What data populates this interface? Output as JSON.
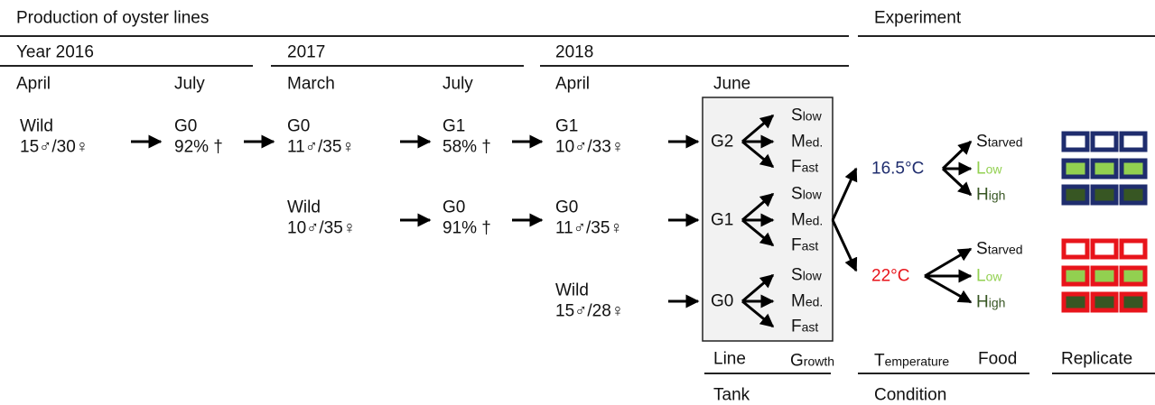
{
  "header": {
    "production": "Production of oyster lines",
    "experiment": "Experiment"
  },
  "years": [
    "Year 2016",
    "2017",
    "2018"
  ],
  "months": [
    "April",
    "July",
    "March",
    "July",
    "April",
    "June"
  ],
  "nodes": [
    {
      "line": "Wild",
      "detail": "15♂/30♀"
    },
    {
      "line": "G0",
      "detail": "92% †"
    },
    {
      "line": "G0",
      "detail": "11♂/35♀"
    },
    {
      "line": "G1",
      "detail": "58% †"
    },
    {
      "line": "G1",
      "detail": "10♂/33♀"
    },
    {
      "line": "Wild",
      "detail": "10♂/35♀"
    },
    {
      "line": "G0",
      "detail": "91% †"
    },
    {
      "line": "G0",
      "detail": "11♂/35♀"
    },
    {
      "line": "Wild",
      "detail": "15♂/28♀"
    }
  ],
  "tank": [
    {
      "label": "G2",
      "growth": [
        "Slow",
        "Med.",
        "Fast"
      ]
    },
    {
      "label": "G1",
      "growth": [
        "Slow",
        "Med.",
        "Fast"
      ]
    },
    {
      "label": "G0",
      "growth": [
        "Slow",
        "Med.",
        "Fast"
      ]
    }
  ],
  "conditions": [
    {
      "temperature": "16.5°C",
      "food": [
        "Starved",
        "Low",
        "High"
      ]
    },
    {
      "temperature": "22°C",
      "food": [
        "Starved",
        "Low",
        "High"
      ]
    }
  ],
  "footer": {
    "line": "Line",
    "growth": "Growth",
    "temperature": "Temperature",
    "food": "Food",
    "replicate": "Replicate",
    "tank": "Tank",
    "condition": "Condition"
  }
}
